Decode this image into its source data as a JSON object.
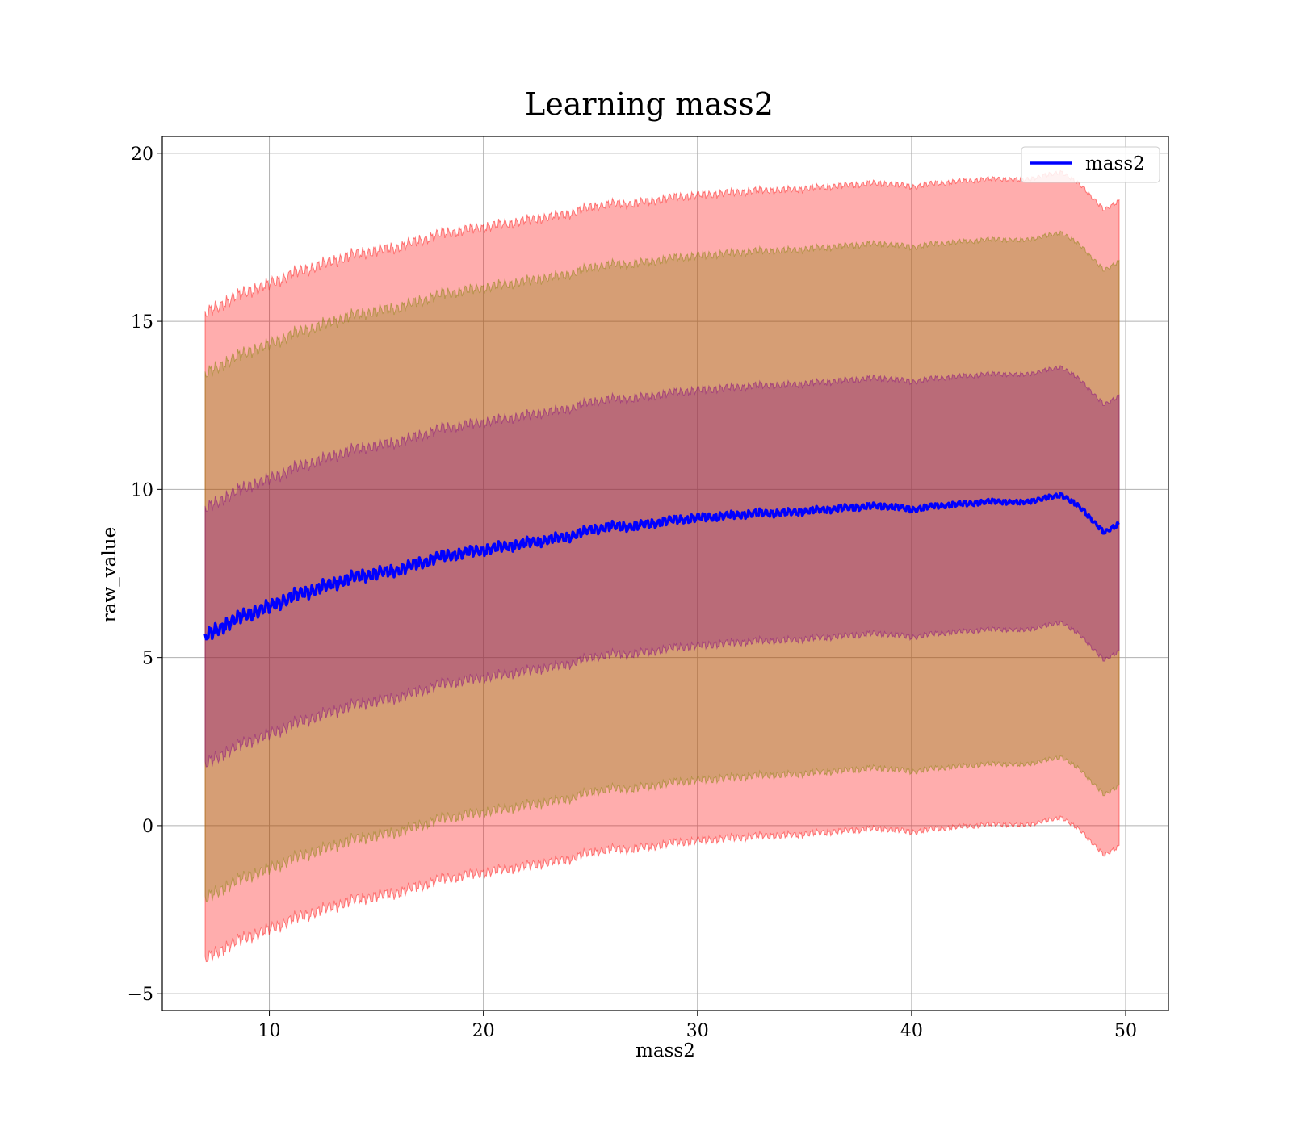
{
  "chart_data": {
    "type": "area",
    "title": "Learning mass2",
    "xlabel": "mass2",
    "ylabel": "raw_value",
    "xlim": [
      5,
      52
    ],
    "ylim": [
      -5.5,
      20.5
    ],
    "x_ticks": [
      10,
      20,
      30,
      40,
      50
    ],
    "y_ticks": [
      -5,
      0,
      5,
      10,
      15,
      20
    ],
    "x_tick_labels": [
      "10",
      "20",
      "30",
      "40",
      "50"
    ],
    "y_tick_labels": [
      "−5",
      "0",
      "5",
      "10",
      "15",
      "20"
    ],
    "grid": true,
    "legend": {
      "position": "top-right",
      "entries": [
        "mass2"
      ]
    },
    "colors": {
      "line": "#0000ff",
      "band_outer": "#ff0000",
      "band_middle": "#808000",
      "band_inner": "#800080"
    },
    "x": [
      7,
      8,
      9,
      10,
      11,
      12,
      13,
      14,
      15,
      16,
      17,
      18,
      19,
      20,
      21,
      22,
      23,
      24,
      25,
      26,
      27,
      28,
      29,
      30,
      31,
      32,
      33,
      34,
      35,
      36,
      37,
      38,
      39,
      40,
      41,
      42,
      43,
      44,
      45,
      46,
      47,
      48,
      49,
      49.7
    ],
    "series": [
      {
        "name": "mass2",
        "values": [
          5.6,
          6.0,
          6.3,
          6.5,
          6.8,
          7.0,
          7.2,
          7.4,
          7.5,
          7.6,
          7.8,
          8.0,
          8.1,
          8.2,
          8.3,
          8.4,
          8.5,
          8.6,
          8.8,
          8.9,
          8.9,
          9.0,
          9.1,
          9.15,
          9.2,
          9.25,
          9.3,
          9.3,
          9.35,
          9.4,
          9.45,
          9.5,
          9.5,
          9.4,
          9.5,
          9.55,
          9.6,
          9.65,
          9.6,
          9.7,
          9.85,
          9.4,
          8.7,
          9.0
        ]
      }
    ],
    "bands": [
      {
        "label": "",
        "offset": 3.8,
        "opacity": 0.32
      },
      {
        "label": "",
        "offset": 7.8,
        "opacity": 0.32
      },
      {
        "label": "",
        "offset": 9.6,
        "opacity": 0.32
      }
    ]
  }
}
